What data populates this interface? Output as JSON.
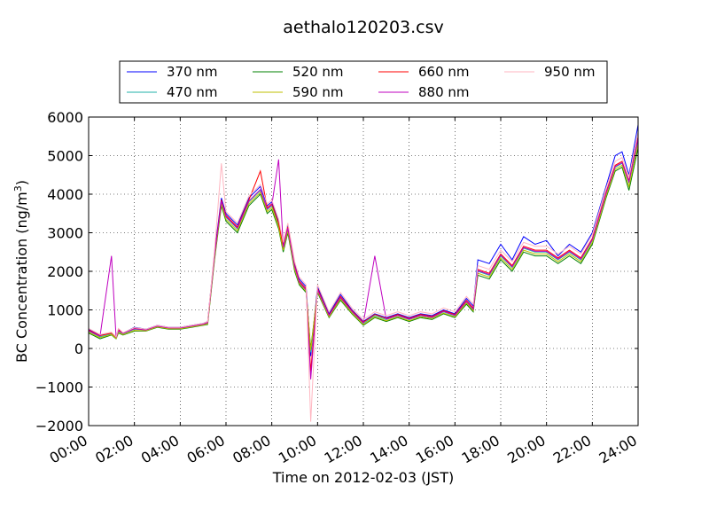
{
  "chart_data": {
    "type": "line",
    "title": "aethalo120203.csv",
    "xlabel": "Time on 2012-02-03 (JST)",
    "ylabel_main": "BC Concentration (ng/m",
    "ylabel_sup": "3",
    "ylabel_end": ")",
    "xlim": [
      0,
      24
    ],
    "ylim": [
      -2000,
      6000
    ],
    "x_ticks": [
      0,
      2,
      4,
      6,
      8,
      10,
      12,
      14,
      16,
      18,
      20,
      22,
      24
    ],
    "x_tick_labels": [
      "00:00",
      "02:00",
      "04:00",
      "06:00",
      "08:00",
      "10:00",
      "12:00",
      "14:00",
      "16:00",
      "18:00",
      "20:00",
      "22:00",
      "24:00"
    ],
    "y_ticks": [
      -2000,
      -1000,
      0,
      1000,
      2000,
      3000,
      4000,
      5000,
      6000
    ],
    "y_tick_labels": [
      "−2000",
      "−1000",
      "0",
      "1000",
      "2000",
      "3000",
      "4000",
      "5000",
      "6000"
    ],
    "grid": true,
    "legend_position": "top-center",
    "x": [
      0.0,
      0.5,
      1.0,
      1.2,
      1.3,
      1.5,
      2.0,
      2.5,
      3.0,
      3.5,
      4.0,
      4.5,
      5.0,
      5.2,
      5.5,
      5.8,
      6.0,
      6.5,
      7.0,
      7.5,
      7.8,
      8.0,
      8.3,
      8.5,
      8.7,
      9.0,
      9.2,
      9.5,
      9.7,
      10.0,
      10.5,
      11.0,
      11.5,
      12.0,
      12.5,
      13.0,
      13.5,
      14.0,
      14.5,
      15.0,
      15.5,
      16.0,
      16.5,
      16.8,
      17.0,
      17.5,
      18.0,
      18.5,
      19.0,
      19.5,
      20.0,
      20.5,
      21.0,
      21.5,
      22.0,
      22.3,
      22.6,
      23.0,
      23.3,
      23.6,
      24.0
    ],
    "series": [
      {
        "name": "370 nm",
        "color": "#0000ff",
        "values": [
          500,
          350,
          400,
          300,
          500,
          400,
          550,
          500,
          600,
          550,
          550,
          600,
          650,
          700,
          2500,
          3900,
          3500,
          3200,
          3900,
          4200,
          3700,
          3800,
          3300,
          2700,
          3200,
          2200,
          1800,
          1600,
          -200,
          1600,
          900,
          1400,
          1000,
          700,
          900,
          800,
          900,
          800,
          900,
          850,
          1000,
          900,
          1300,
          1100,
          2300,
          2200,
          2700,
          2300,
          2900,
          2700,
          2800,
          2400,
          2700,
          2500,
          3000,
          3600,
          4200,
          5000,
          5100,
          4500,
          5800
        ]
      },
      {
        "name": "470 nm",
        "color": "#20b2aa",
        "values": [
          450,
          300,
          380,
          280,
          450,
          380,
          500,
          480,
          580,
          520,
          520,
          580,
          620,
          650,
          2400,
          3800,
          3400,
          3100,
          3800,
          4100,
          3600,
          3700,
          3200,
          2600,
          3100,
          2100,
          1700,
          1500,
          -100,
          1500,
          850,
          1300,
          950,
          650,
          850,
          750,
          850,
          750,
          850,
          800,
          950,
          850,
          1200,
          1000,
          2000,
          1900,
          2400,
          2100,
          2600,
          2500,
          2500,
          2300,
          2500,
          2300,
          2800,
          3400,
          4000,
          4700,
          4800,
          4300,
          5400
        ]
      },
      {
        "name": "520 nm",
        "color": "#008000",
        "values": [
          400,
          250,
          350,
          250,
          400,
          350,
          450,
          450,
          550,
          500,
          500,
          550,
          600,
          620,
          2300,
          3700,
          3300,
          3000,
          3700,
          4000,
          3500,
          3600,
          3100,
          2500,
          3000,
          2000,
          1650,
          1450,
          0,
          1450,
          800,
          1250,
          900,
          600,
          800,
          700,
          800,
          700,
          800,
          750,
          900,
          800,
          1150,
          950,
          1900,
          1800,
          2300,
          2000,
          2500,
          2400,
          2400,
          2200,
          2400,
          2200,
          2700,
          3300,
          3900,
          4600,
          4700,
          4100,
          5200
        ]
      },
      {
        "name": "590 nm",
        "color": "#bfbf00",
        "values": [
          420,
          280,
          360,
          260,
          420,
          360,
          470,
          460,
          560,
          510,
          510,
          560,
          610,
          640,
          2350,
          3750,
          3350,
          3050,
          3750,
          4050,
          3550,
          3650,
          3150,
          2550,
          3050,
          2050,
          1680,
          1480,
          -50,
          1480,
          820,
          1280,
          920,
          620,
          820,
          720,
          820,
          720,
          820,
          780,
          920,
          820,
          1180,
          980,
          1950,
          1850,
          2350,
          2050,
          2550,
          2450,
          2450,
          2250,
          2450,
          2250,
          2750,
          3350,
          3950,
          4650,
          4750,
          4200,
          5300
        ]
      },
      {
        "name": "660 nm",
        "color": "#ff0000",
        "values": [
          480,
          330,
          400,
          290,
          480,
          400,
          520,
          490,
          590,
          540,
          540,
          590,
          640,
          680,
          2450,
          3850,
          3450,
          3150,
          3850,
          4600,
          3650,
          3750,
          3250,
          2650,
          3150,
          2150,
          1750,
          1550,
          -600,
          1550,
          870,
          1350,
          980,
          680,
          880,
          780,
          880,
          780,
          880,
          830,
          980,
          880,
          1250,
          1050,
          2050,
          1950,
          2450,
          2150,
          2650,
          2550,
          2550,
          2350,
          2550,
          2350,
          2850,
          3450,
          4050,
          4750,
          4850,
          4350,
          5500
        ]
      },
      {
        "name": "880 nm",
        "color": "#bf00bf",
        "values": [
          460,
          320,
          2400,
          280,
          460,
          390,
          510,
          480,
          580,
          530,
          530,
          580,
          630,
          670,
          2420,
          3820,
          3420,
          3120,
          3820,
          4120,
          3620,
          3720,
          4900,
          2620,
          3120,
          2120,
          1720,
          1520,
          -800,
          1520,
          860,
          1320,
          960,
          660,
          2400,
          760,
          860,
          760,
          860,
          810,
          960,
          860,
          1220,
          1020,
          2020,
          1920,
          2420,
          2120,
          2620,
          2520,
          2520,
          2320,
          2520,
          2320,
          2820,
          3420,
          4020,
          4720,
          4820,
          4320,
          5450
        ]
      },
      {
        "name": "950 nm",
        "color": "#ffb6c1",
        "values": [
          520,
          360,
          420,
          300,
          520,
          410,
          540,
          500,
          600,
          550,
          550,
          600,
          650,
          700,
          2550,
          4800,
          3550,
          3250,
          3950,
          4250,
          3750,
          3850,
          3350,
          2750,
          3250,
          2250,
          1850,
          1650,
          -1900,
          1650,
          950,
          1450,
          1050,
          750,
          950,
          850,
          950,
          850,
          950,
          900,
          1050,
          950,
          1350,
          1150,
          2150,
          2050,
          2550,
          2250,
          2750,
          2650,
          2650,
          2450,
          2650,
          2450,
          2950,
          3550,
          4150,
          4850,
          4950,
          4450,
          5600
        ]
      }
    ]
  }
}
